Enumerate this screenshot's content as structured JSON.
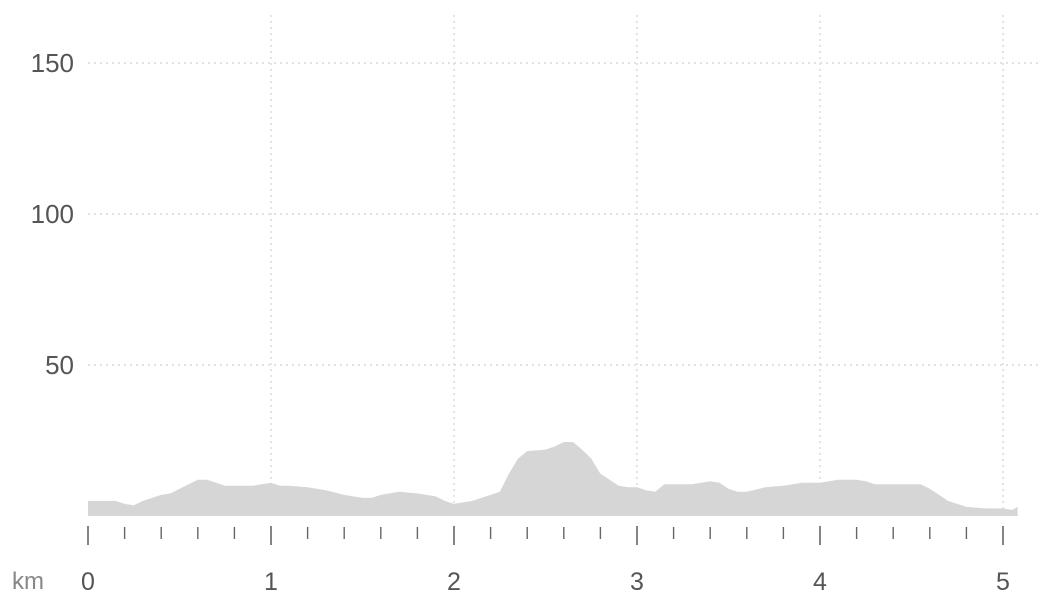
{
  "chart_data": {
    "type": "area",
    "title": "",
    "xlabel": "km",
    "ylabel": "",
    "xlim": [
      0,
      5.1
    ],
    "ylim": [
      0,
      165
    ],
    "grid": true,
    "x_ticks": [
      0,
      1,
      2,
      3,
      4,
      5
    ],
    "y_ticks": [
      50,
      100,
      150
    ],
    "x_minor_step": 0.2,
    "colors": {
      "fill": "#d6d6d6",
      "grid": "#d8d8d8",
      "axis": "#666666",
      "text": "#555555"
    },
    "series": [
      {
        "x": [
          0.0,
          0.15,
          0.2,
          0.25,
          0.3,
          0.4,
          0.45,
          0.55,
          0.6,
          0.65,
          0.7,
          0.75,
          0.8,
          0.85,
          0.9,
          0.95,
          1.0,
          1.05,
          1.1,
          1.2,
          1.3,
          1.4,
          1.5,
          1.55,
          1.6,
          1.7,
          1.8,
          1.9,
          1.95,
          2.0,
          2.1,
          2.15,
          2.2,
          2.25,
          2.3,
          2.35,
          2.4,
          2.5,
          2.55,
          2.6,
          2.65,
          2.7,
          2.75,
          2.8,
          2.85,
          2.9,
          2.95,
          3.0,
          3.05,
          3.1,
          3.15,
          3.2,
          3.3,
          3.4,
          3.45,
          3.5,
          3.55,
          3.6,
          3.7,
          3.8,
          3.9,
          4.0,
          4.05,
          4.1,
          4.2,
          4.25,
          4.3,
          4.4,
          4.5,
          4.55,
          4.6,
          4.7,
          4.8,
          4.9,
          5.0,
          5.05,
          5.08
        ],
        "y": [
          5,
          5,
          4,
          3.5,
          5,
          7,
          7.5,
          10.5,
          12,
          12,
          11,
          10,
          10,
          10,
          10,
          10.5,
          11,
          10,
          10,
          9.5,
          8.5,
          7,
          6,
          6,
          7,
          8,
          7.5,
          6.5,
          5,
          4,
          5,
          6,
          7,
          8,
          14,
          19,
          21.5,
          22,
          23,
          24.5,
          24.5,
          22,
          19,
          14,
          12,
          10,
          9.5,
          9.5,
          8.5,
          8,
          10.5,
          10.5,
          10.5,
          11.5,
          11,
          9,
          8,
          8,
          9.5,
          10,
          11,
          11,
          11.5,
          12,
          12,
          11.5,
          10.5,
          10.5,
          10.5,
          10.5,
          9,
          5,
          3,
          2.5,
          2.5,
          2,
          3
        ]
      }
    ]
  }
}
